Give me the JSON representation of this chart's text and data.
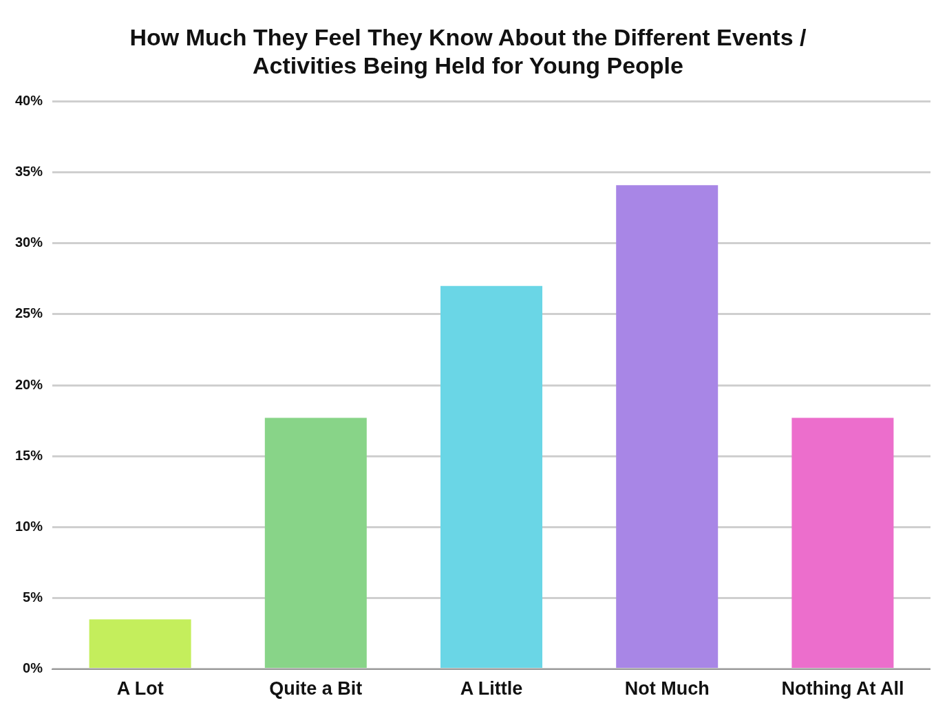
{
  "chart_data": {
    "type": "bar",
    "title": "How Much They Feel They Know About the Different Events / Activities Being Held for Young People",
    "categories": [
      "A Lot",
      "Quite a Bit",
      "A Little",
      "Not Much",
      "Nothing At All"
    ],
    "values": [
      3.5,
      17.7,
      27,
      34.1,
      17.7
    ],
    "colors": [
      "#c4ee5c",
      "#88d488",
      "#6ad6e6",
      "#a886e6",
      "#ec6ecc"
    ],
    "ylim": [
      0,
      40
    ],
    "yticks": [
      {
        "value": 0,
        "label": "0%"
      },
      {
        "value": 5,
        "label": "5%"
      },
      {
        "value": 10,
        "label": "10%"
      },
      {
        "value": 15,
        "label": "15%"
      },
      {
        "value": 20,
        "label": "20%"
      },
      {
        "value": 25,
        "label": "25%"
      },
      {
        "value": 30,
        "label": "30%"
      },
      {
        "value": 35,
        "label": "35%"
      },
      {
        "value": 40,
        "label": "40%"
      }
    ],
    "grid": "y",
    "legend": false
  }
}
